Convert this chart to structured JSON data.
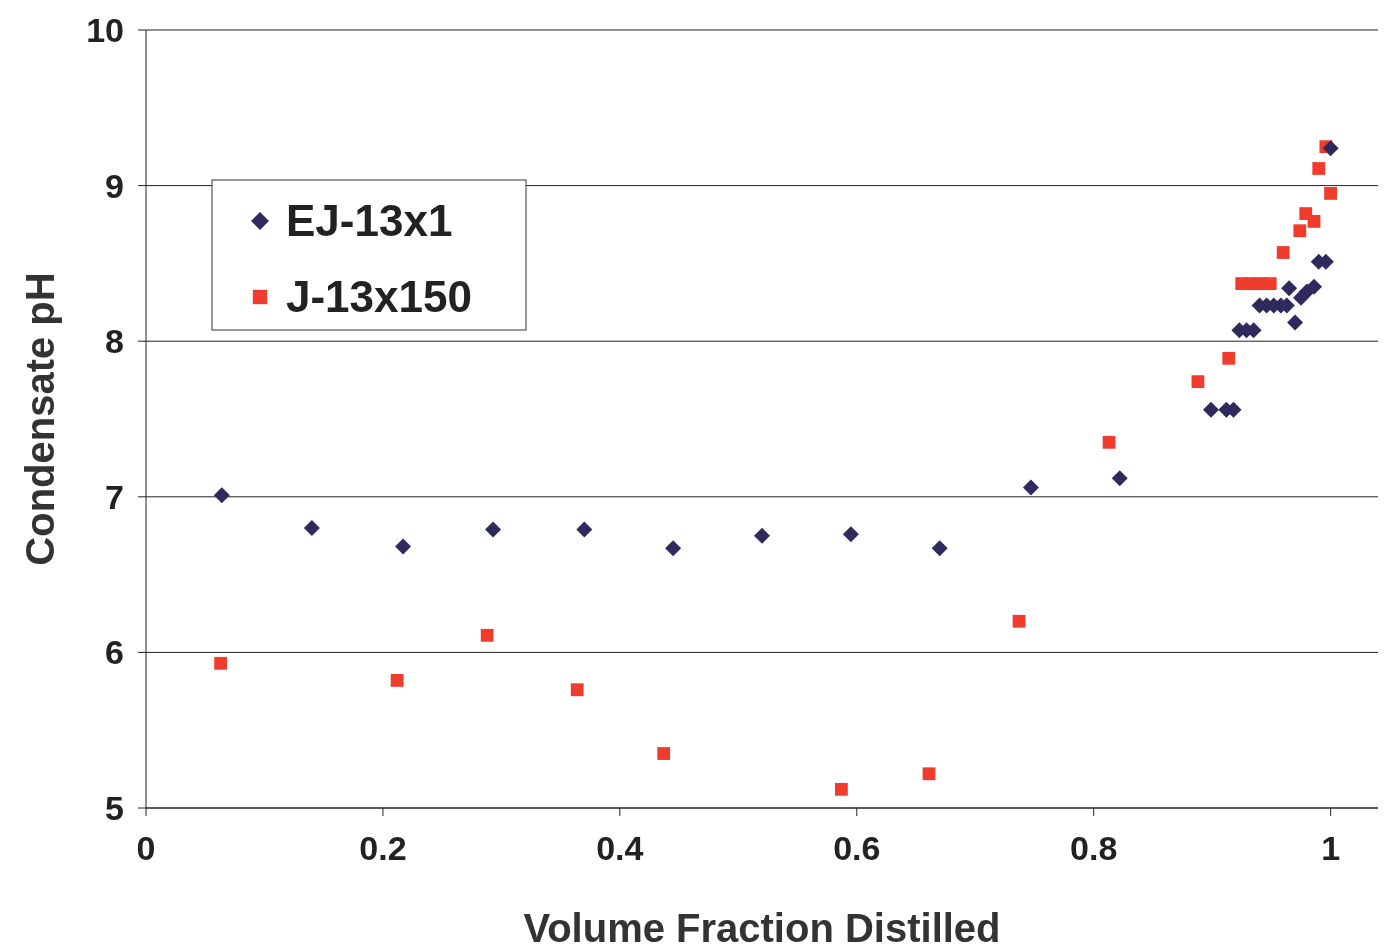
{
  "chart_data": {
    "type": "scatter",
    "xlabel": "Volume Fraction Distilled",
    "ylabel": "Condensate pH",
    "xlim": [
      0,
      1.04
    ],
    "xticks": [
      0,
      0.2,
      0.4,
      0.6,
      0.8,
      1
    ],
    "ylim": [
      5,
      10
    ],
    "yticks": [
      5,
      6,
      7,
      8,
      9,
      10
    ],
    "grid": "y",
    "legend": "top left",
    "series": [
      {
        "name": "EJ-13x1",
        "color": "#2e2a5e",
        "marker": "diamond",
        "x": [
          0.064,
          0.14,
          0.217,
          0.293,
          0.37,
          0.445,
          0.52,
          0.595,
          0.67,
          0.747,
          0.822,
          0.899,
          0.912,
          0.918,
          0.923,
          0.929,
          0.935,
          0.94,
          0.946,
          0.952,
          0.958,
          0.963,
          0.965,
          0.97,
          0.975,
          0.98,
          0.986,
          0.99,
          0.996,
          1.0
        ],
        "values": [
          7.01,
          6.8,
          6.68,
          6.79,
          6.79,
          6.67,
          6.75,
          6.76,
          6.67,
          7.06,
          7.12,
          7.56,
          7.56,
          7.56,
          8.07,
          8.07,
          8.07,
          8.23,
          8.23,
          8.23,
          8.23,
          8.23,
          8.34,
          8.12,
          8.28,
          8.32,
          8.35,
          8.51,
          8.51,
          9.24
        ]
      },
      {
        "name": "J-13x150",
        "color": "#f03c2c",
        "marker": "square",
        "x": [
          0.063,
          0.212,
          0.288,
          0.364,
          0.437,
          0.587,
          0.661,
          0.737,
          0.813,
          0.888,
          0.914,
          0.925,
          0.933,
          0.941,
          0.949,
          0.96,
          0.974,
          0.979,
          0.986,
          0.99,
          0.996,
          1.0
        ],
        "values": [
          5.93,
          5.82,
          6.11,
          5.76,
          5.35,
          5.12,
          5.22,
          6.2,
          7.35,
          7.74,
          7.89,
          8.37,
          8.37,
          8.37,
          8.37,
          8.57,
          8.71,
          8.82,
          8.77,
          9.11,
          9.25,
          8.95
        ]
      }
    ]
  }
}
